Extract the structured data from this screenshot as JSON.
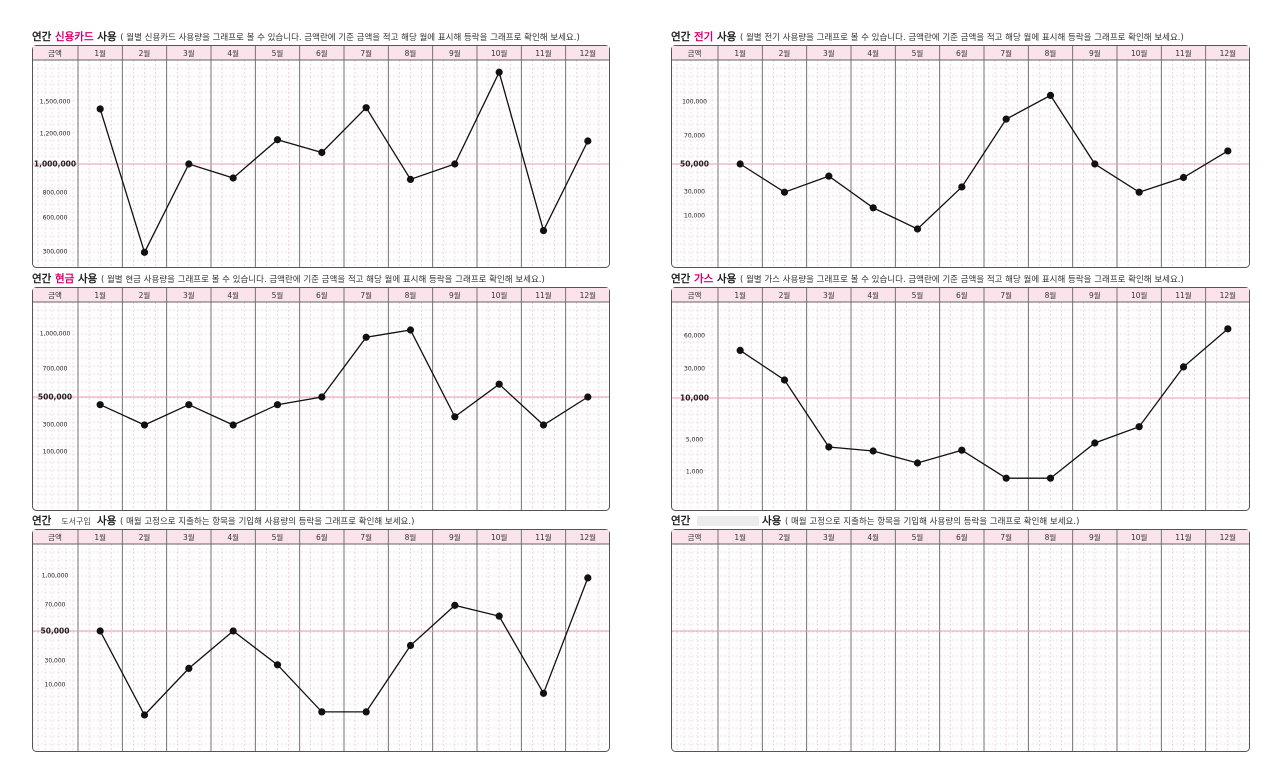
{
  "theme": {
    "accent": "#d6006e",
    "grid_minor": "#e8b9cc",
    "header_fill": "#fbe3ec",
    "ref_line": "#ee9ab8"
  },
  "months": [
    "1월",
    "2월",
    "3월",
    "4월",
    "5월",
    "6월",
    "7월",
    "8월",
    "9월",
    "10월",
    "11월",
    "12월"
  ],
  "header_label": "금액",
  "chart_data": [
    {
      "type": "line",
      "title_prefix": "연간",
      "title_highlight": "신용카드",
      "title_suffix": "사용",
      "description": "( 월별 신용카드 사용량을 그래프로 볼 수 있습니다. 금액란에 기준 금액을 적고 해당 월에 표시해 등락을 그래프로 확인해 보세요.)",
      "categories": [
        "1월",
        "2월",
        "3월",
        "4월",
        "5월",
        "6월",
        "7월",
        "8월",
        "9월",
        "10월",
        "11월",
        "12월"
      ],
      "yticks": [
        "1,500,000",
        "1,200,000",
        "1,000,000",
        "800,000",
        "600,000",
        "300,000"
      ],
      "reference_label": "1,000,000",
      "series": [
        {
          "values": [
            1460000,
            250000,
            1000000,
            900000,
            1210000,
            1100000,
            1470000,
            890000,
            1000000,
            1780000,
            480000,
            1200000
          ]
        }
      ]
    },
    {
      "type": "line",
      "title_prefix": "연간",
      "title_highlight": "현금",
      "title_suffix": "사용",
      "description": "( 월별 현금 사용량을 그래프로 볼 수 있습니다. 금액란에 기준 금액을 적고 해당 월에 표시해 등락을 그래프로 확인해 보세요.)",
      "categories": [
        "1월",
        "2월",
        "3월",
        "4월",
        "5월",
        "6월",
        "7월",
        "8월",
        "9월",
        "10월",
        "11월",
        "12월"
      ],
      "yticks": [
        "1,000,000",
        "700,000",
        "500,000",
        "300,000",
        "100,000"
      ],
      "reference_label": "500,000",
      "series": [
        {
          "values": [
            430000,
            250000,
            430000,
            250000,
            430000,
            500000,
            960000,
            1050000,
            320000,
            580000,
            250000,
            500000
          ]
        }
      ]
    },
    {
      "type": "line",
      "title_prefix": "연간",
      "title_highlight": "",
      "title_handwritten": "도서구입",
      "title_suffix": "사용",
      "description": "( 매월 고정으로 지출하는 항목을 기입해 사용량의 등락을 그래프로 확인해 보세요.)",
      "categories": [
        "1월",
        "2월",
        "3월",
        "4월",
        "5월",
        "6월",
        "7월",
        "8월",
        "9월",
        "10월",
        "11월",
        "12월"
      ],
      "yticks": [
        "1,00,000",
        "70,000",
        "50,000",
        "30,000",
        "10,000"
      ],
      "reference_label": "50,000",
      "series": [
        {
          "values": [
            50000,
            0,
            23000,
            50000,
            26000,
            1000,
            1000,
            40000,
            69000,
            61000,
            7000,
            97000
          ]
        }
      ]
    },
    {
      "type": "line",
      "title_prefix": "연간",
      "title_highlight": "전기",
      "title_suffix": "사용",
      "description": "( 월별 전기 사용량을 그래프로 볼 수 있습니다. 금액란에 기준 금액을 적고 해당 월에 표시해 등락을 그래프로 확인해 보세요.)",
      "categories": [
        "1월",
        "2월",
        "3월",
        "4월",
        "5월",
        "6월",
        "7월",
        "8월",
        "9월",
        "10월",
        "11월",
        "12월"
      ],
      "yticks": [
        "100,000",
        "70,000",
        "50,000",
        "30,000",
        "10,000"
      ],
      "reference_label": "50,000",
      "series": [
        {
          "values": [
            50000,
            29000,
            41000,
            16000,
            6000,
            33000,
            84000,
            107000,
            50000,
            29000,
            40000,
            59000
          ]
        }
      ]
    },
    {
      "type": "line",
      "title_prefix": "연간",
      "title_highlight": "가스",
      "title_suffix": "사용",
      "description": "( 월별 가스 사용량을 그래프로 볼 수 있습니다. 금액란에 기준 금액을 적고 해당 월에 표시해 등락을 그래프로 확인해 보세요.)",
      "categories": [
        "1월",
        "2월",
        "3월",
        "4월",
        "5월",
        "6월",
        "7월",
        "8월",
        "9월",
        "10월",
        "11월",
        "12월"
      ],
      "yticks": [
        "60,000",
        "30,000",
        "10,000",
        "5,000",
        "1,000"
      ],
      "reference_label": "10,000",
      "series": [
        {
          "values": [
            46000,
            22000,
            4000,
            3500,
            2000,
            3600,
            800,
            800,
            4500,
            6500,
            31000,
            82000
          ]
        }
      ]
    },
    {
      "type": "line",
      "title_prefix": "연간",
      "title_highlight": "",
      "title_blank": true,
      "title_suffix": "사용",
      "description": "( 매월 고정으로 지출하는 항목을 기입해 사용량의 등락을 그래프로 확인해 보세요.)",
      "categories": [
        "1월",
        "2월",
        "3월",
        "4월",
        "5월",
        "6월",
        "7월",
        "8월",
        "9월",
        "10월",
        "11월",
        "12월"
      ],
      "yticks": [],
      "reference_label": "",
      "series": []
    }
  ]
}
